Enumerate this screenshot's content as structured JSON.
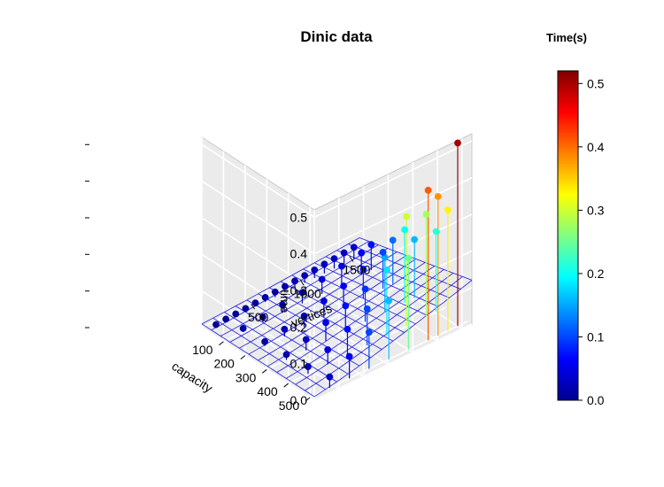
{
  "chart_data": {
    "type": "scatter3d",
    "title": "Dinic  data",
    "xlabel": "vertices",
    "ylabel": "capacity",
    "zlabel": "time",
    "x_ticks": [
      "500",
      "1000",
      "1500"
    ],
    "y_ticks": [
      "100",
      "200",
      "300",
      "400",
      "500"
    ],
    "z_ticks": [
      "0.0",
      "0.1",
      "0.2",
      "0.3",
      "0.4",
      "0.5"
    ],
    "xlim": [
      0,
      1600
    ],
    "ylim": [
      0,
      520
    ],
    "zlim": [
      0,
      0.52
    ],
    "grid": true,
    "fitted_surface": true,
    "colorbar": {
      "title": "Time(s)",
      "ticks": [
        "0.0",
        "0.1",
        "0.2",
        "0.3",
        "0.4",
        "0.5"
      ],
      "range": [
        0,
        0.52
      ],
      "colormap": "jet",
      "colors": [
        "#00008F",
        "#0000FF",
        "#0080FF",
        "#00FFFF",
        "#80FF80",
        "#FFFF00",
        "#FF8000",
        "#FF0000",
        "#800000"
      ]
    },
    "points": [
      {
        "x": 100,
        "y": 20,
        "z": 0.003
      },
      {
        "x": 200,
        "y": 20,
        "z": 0.005
      },
      {
        "x": 300,
        "y": 20,
        "z": 0.006
      },
      {
        "x": 400,
        "y": 20,
        "z": 0.008
      },
      {
        "x": 500,
        "y": 20,
        "z": 0.01
      },
      {
        "x": 600,
        "y": 20,
        "z": 0.012
      },
      {
        "x": 700,
        "y": 20,
        "z": 0.014
      },
      {
        "x": 800,
        "y": 20,
        "z": 0.016
      },
      {
        "x": 900,
        "y": 20,
        "z": 0.018
      },
      {
        "x": 1000,
        "y": 20,
        "z": 0.02
      },
      {
        "x": 1100,
        "y": 20,
        "z": 0.022
      },
      {
        "x": 1200,
        "y": 20,
        "z": 0.025
      },
      {
        "x": 1300,
        "y": 20,
        "z": 0.027
      },
      {
        "x": 1400,
        "y": 20,
        "z": 0.03
      },
      {
        "x": 1500,
        "y": 20,
        "z": 0.032
      },
      {
        "x": 200,
        "y": 100,
        "z": 0.01
      },
      {
        "x": 400,
        "y": 100,
        "z": 0.015
      },
      {
        "x": 600,
        "y": 100,
        "z": 0.022
      },
      {
        "x": 800,
        "y": 100,
        "z": 0.03
      },
      {
        "x": 1000,
        "y": 100,
        "z": 0.04
      },
      {
        "x": 1200,
        "y": 100,
        "z": 0.05
      },
      {
        "x": 1400,
        "y": 100,
        "z": 0.06
      },
      {
        "x": 1500,
        "y": 100,
        "z": 0.07
      },
      {
        "x": 200,
        "y": 200,
        "z": 0.012
      },
      {
        "x": 400,
        "y": 200,
        "z": 0.02
      },
      {
        "x": 600,
        "y": 200,
        "z": 0.03
      },
      {
        "x": 800,
        "y": 200,
        "z": 0.045
      },
      {
        "x": 1000,
        "y": 200,
        "z": 0.06
      },
      {
        "x": 1200,
        "y": 200,
        "z": 0.08
      },
      {
        "x": 1400,
        "y": 200,
        "z": 0.1
      },
      {
        "x": 1500,
        "y": 200,
        "z": 0.12
      },
      {
        "x": 200,
        "y": 300,
        "z": 0.015
      },
      {
        "x": 400,
        "y": 300,
        "z": 0.03
      },
      {
        "x": 600,
        "y": 300,
        "z": 0.05
      },
      {
        "x": 800,
        "y": 300,
        "z": 0.07
      },
      {
        "x": 1000,
        "y": 300,
        "z": 0.09
      },
      {
        "x": 1200,
        "y": 300,
        "z": 0.15
      },
      {
        "x": 1400,
        "y": 300,
        "z": 0.2
      },
      {
        "x": 1500,
        "y": 300,
        "z": 0.16
      },
      {
        "x": 200,
        "y": 400,
        "z": 0.02
      },
      {
        "x": 400,
        "y": 400,
        "z": 0.04
      },
      {
        "x": 600,
        "y": 400,
        "z": 0.07
      },
      {
        "x": 800,
        "y": 400,
        "z": 0.1
      },
      {
        "x": 1000,
        "y": 400,
        "z": 0.18
      },
      {
        "x": 1200,
        "y": 400,
        "z": 0.3
      },
      {
        "x": 1400,
        "y": 400,
        "z": 0.28
      },
      {
        "x": 1500,
        "y": 400,
        "z": 0.22
      },
      {
        "x": 200,
        "y": 500,
        "z": 0.03
      },
      {
        "x": 400,
        "y": 500,
        "z": 0.06
      },
      {
        "x": 600,
        "y": 500,
        "z": 0.1
      },
      {
        "x": 800,
        "y": 500,
        "z": 0.16
      },
      {
        "x": 1000,
        "y": 500,
        "z": 0.25
      },
      {
        "x": 1200,
        "y": 500,
        "z": 0.41
      },
      {
        "x": 1300,
        "y": 500,
        "z": 0.38
      },
      {
        "x": 1400,
        "y": 500,
        "z": 0.33
      },
      {
        "x": 1500,
        "y": 500,
        "z": 0.5
      }
    ]
  }
}
